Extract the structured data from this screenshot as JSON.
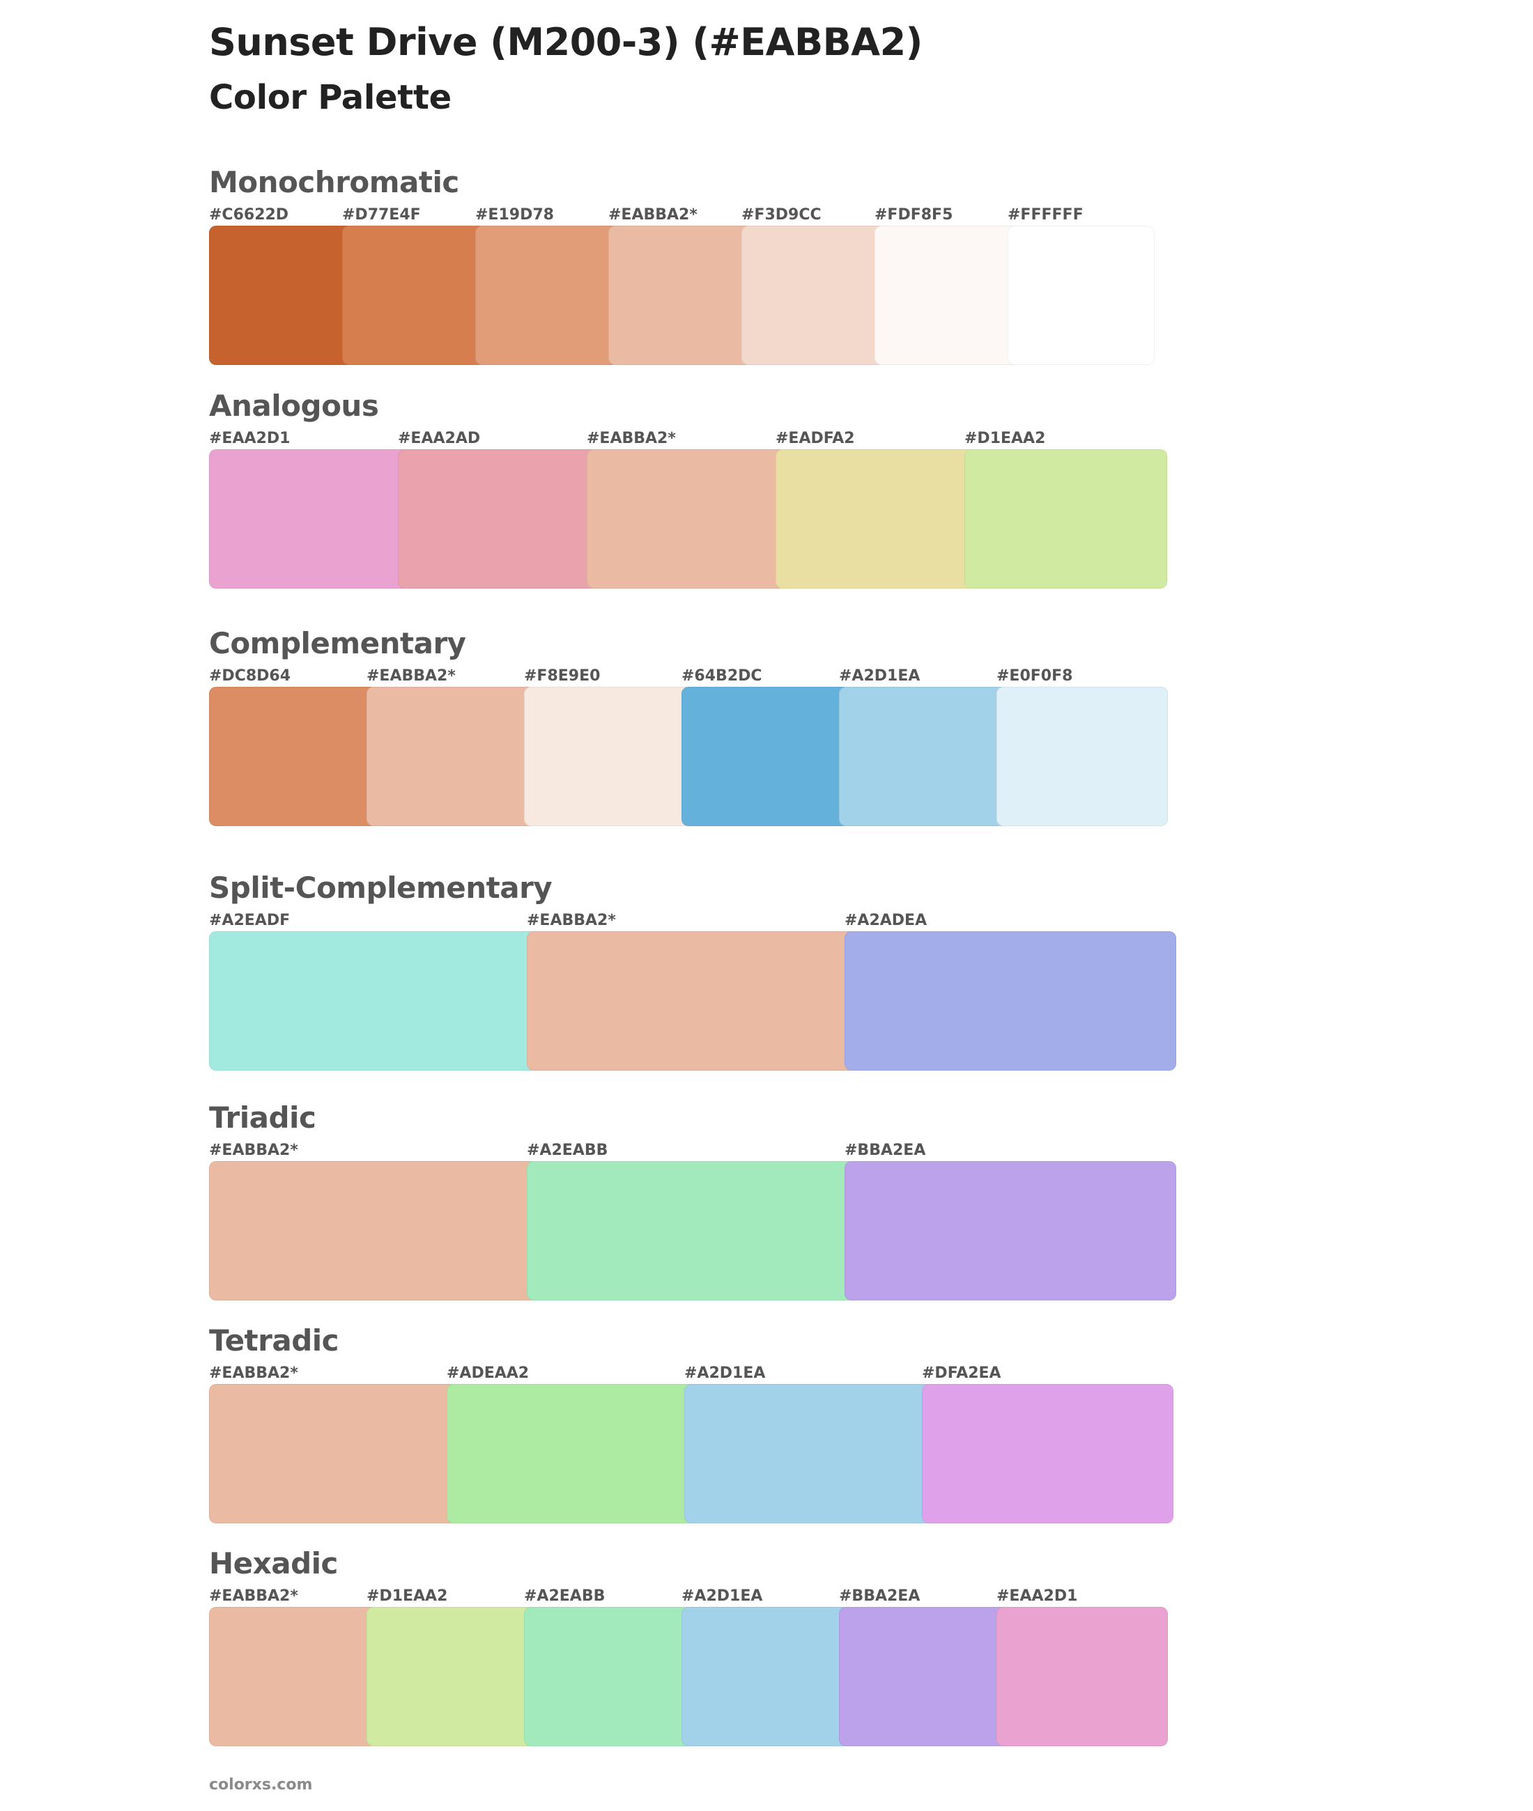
{
  "header": {
    "title": "Sunset Drive (M200-3) (#EABBA2)",
    "subtitle": "Color Palette"
  },
  "sections": [
    {
      "title": "Monochromatic",
      "swatches": [
        {
          "label": "#C6622D",
          "color": "#C6622D"
        },
        {
          "label": "#D77E4F",
          "color": "#D77E4F"
        },
        {
          "label": "#E19D78",
          "color": "#E19D78"
        },
        {
          "label": "#EABBA2*",
          "color": "#EABBA2"
        },
        {
          "label": "#F3D9CC",
          "color": "#F3D9CC"
        },
        {
          "label": "#FDF8F5",
          "color": "#FDF8F5"
        },
        {
          "label": "#FFFFFF",
          "color": "#FFFFFF"
        }
      ]
    },
    {
      "title": "Analogous",
      "swatches": [
        {
          "label": "#EAA2D1",
          "color": "#EAA2D1"
        },
        {
          "label": "#EAA2AD",
          "color": "#EAA2AD"
        },
        {
          "label": "#EABBA2*",
          "color": "#EABBA2"
        },
        {
          "label": "#EADFA2",
          "color": "#EADFA2"
        },
        {
          "label": "#D1EAA2",
          "color": "#D1EAA2"
        }
      ]
    },
    {
      "title": "Complementary",
      "swatches": [
        {
          "label": "#DC8D64",
          "color": "#DC8D64"
        },
        {
          "label": "#EABBA2*",
          "color": "#EABBA2"
        },
        {
          "label": "#F8E9E0",
          "color": "#F8E9E0"
        },
        {
          "label": "#64B2DC",
          "color": "#64B2DC"
        },
        {
          "label": "#A2D1EA",
          "color": "#A2D1EA"
        },
        {
          "label": "#E0F0F8",
          "color": "#E0F0F8"
        }
      ]
    },
    {
      "title": "Split-Complementary",
      "swatches": [
        {
          "label": "#A2EADF",
          "color": "#A2EADF"
        },
        {
          "label": "#EABBA2*",
          "color": "#EABBA2"
        },
        {
          "label": "#A2ADEA",
          "color": "#A2ADEA"
        }
      ]
    },
    {
      "title": "Triadic",
      "swatches": [
        {
          "label": "#EABBA2*",
          "color": "#EABBA2"
        },
        {
          "label": "#A2EABB",
          "color": "#A2EABB"
        },
        {
          "label": "#BBA2EA",
          "color": "#BBA2EA"
        }
      ]
    },
    {
      "title": "Tetradic",
      "swatches": [
        {
          "label": "#EABBA2*",
          "color": "#EABBA2"
        },
        {
          "label": "#ADEAA2",
          "color": "#ADEAA2"
        },
        {
          "label": "#A2D1EA",
          "color": "#A2D1EA"
        },
        {
          "label": "#DFA2EA",
          "color": "#DFA2EA"
        }
      ]
    },
    {
      "title": "Hexadic",
      "swatches": [
        {
          "label": "#EABBA2*",
          "color": "#EABBA2"
        },
        {
          "label": "#D1EAA2",
          "color": "#D1EAA2"
        },
        {
          "label": "#A2EABB",
          "color": "#A2EABB"
        },
        {
          "label": "#A2D1EA",
          "color": "#A2D1EA"
        },
        {
          "label": "#BBA2EA",
          "color": "#BBA2EA"
        },
        {
          "label": "#EAA2D1",
          "color": "#EAA2D1"
        }
      ]
    }
  ],
  "footer": {
    "text": "colorxs.com"
  }
}
